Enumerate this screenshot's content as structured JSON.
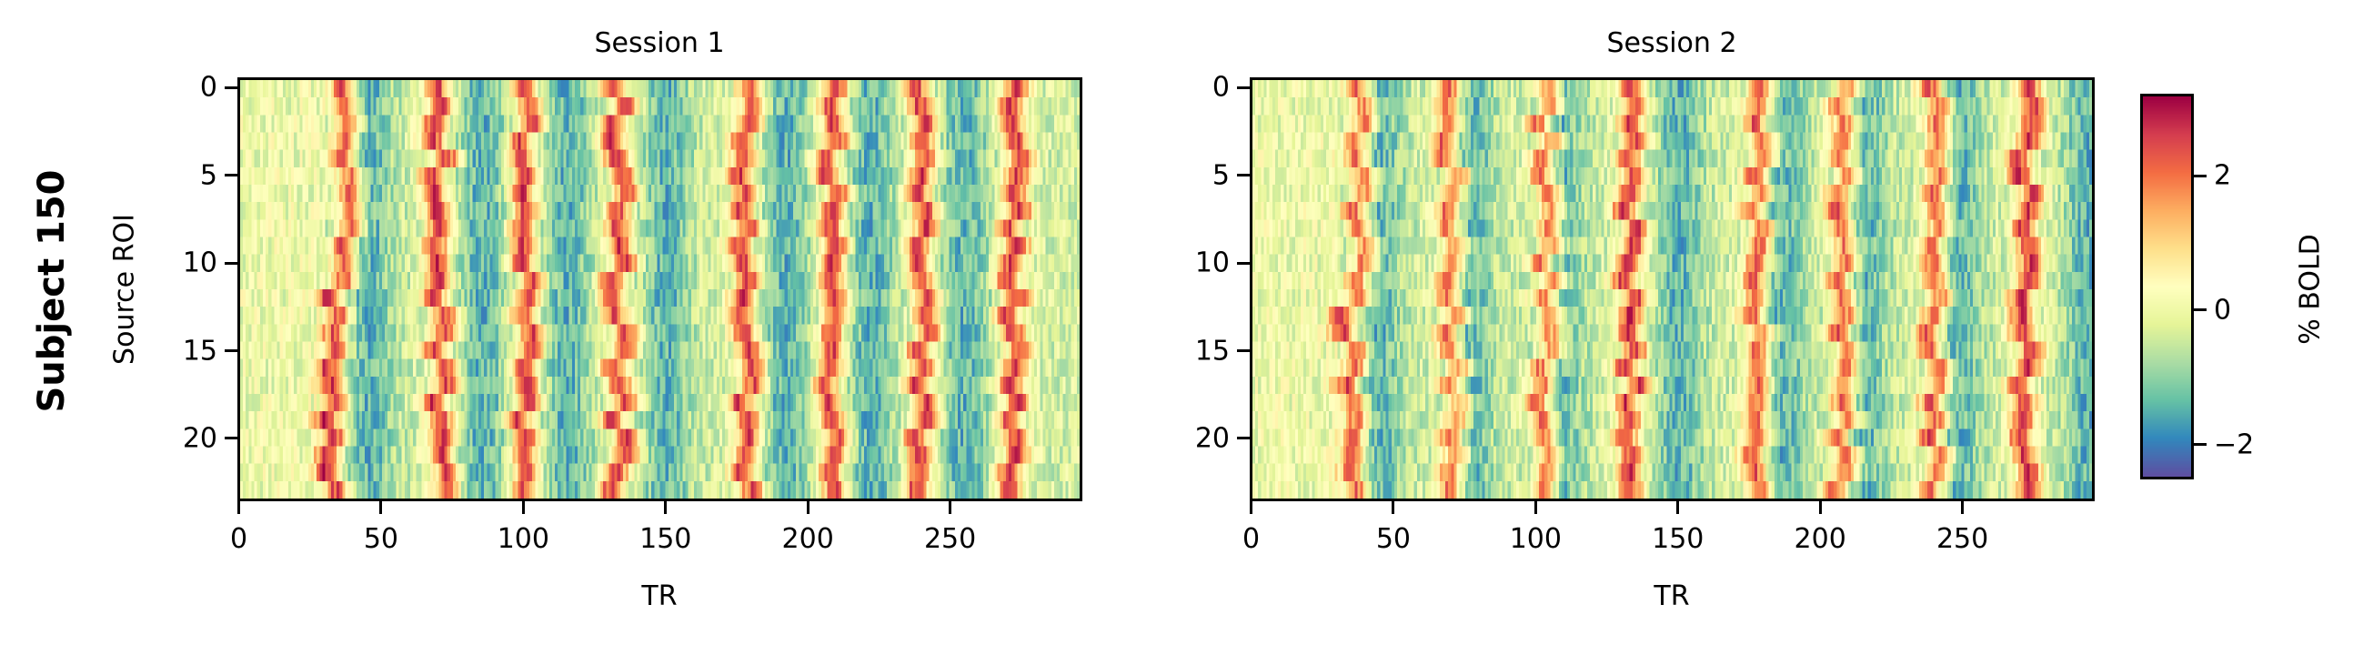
{
  "figure": {
    "row_label": "Subject 150"
  },
  "chart_data": {
    "type": "heatmap",
    "title": "Subject 150",
    "colormap": "Spectral_r",
    "colorbar": {
      "label": "% BOLD",
      "range": [
        -2.5,
        3.2
      ],
      "ticks": [
        -2,
        0,
        2
      ],
      "tick_labels": [
        "−2",
        "0",
        "2"
      ]
    },
    "panels": [
      {
        "title": "Session 1",
        "xlabel": "TR",
        "ylabel": "Source ROI",
        "n_timepoints": 296,
        "n_rois": 24,
        "xticks": [
          0,
          50,
          100,
          150,
          200,
          250
        ],
        "xtick_labels": [
          "0",
          "50",
          "100",
          "150",
          "200",
          "250"
        ],
        "yticks": [
          0,
          5,
          10,
          15,
          20
        ],
        "ytick_labels": [
          "0",
          "5",
          "10",
          "15",
          "20"
        ],
        "xlim": [
          0,
          296
        ],
        "ylim": [
          23.5,
          -0.5
        ],
        "peak_TRs": [
          37,
          70,
          100,
          133,
          178,
          208,
          240,
          272
        ],
        "trough_TRs": [
          45,
          85,
          115,
          150,
          192,
          222,
          255
        ],
        "peak_drift_by_roi": "peaks shift ~4 TR earlier for ROIs 13-23 at TR~37; otherwise roughly aligned across ROIs",
        "seed": 11
      },
      {
        "title": "Session 2",
        "xlabel": "TR",
        "ylabel": "",
        "n_timepoints": 296,
        "n_rois": 24,
        "xticks": [
          0,
          50,
          100,
          150,
          200,
          250
        ],
        "xtick_labels": [
          "0",
          "50",
          "100",
          "150",
          "200",
          "250"
        ],
        "yticks": [
          0,
          5,
          10,
          15,
          20
        ],
        "ytick_labels": [
          "0",
          "5",
          "10",
          "15",
          "20"
        ],
        "xlim": [
          0,
          296
        ],
        "ylim": [
          23.5,
          -0.5
        ],
        "peak_TRs": [
          38,
          70,
          103,
          133,
          178,
          208,
          240,
          272
        ],
        "trough_TRs": [
          44,
          76,
          108,
          150,
          186,
          215,
          248,
          294
        ],
        "peak_drift_by_roi": "peaks shift ~4 TR earlier for ROIs 12-23 at TR~38; otherwise roughly aligned across ROIs",
        "seed": 23
      }
    ]
  }
}
